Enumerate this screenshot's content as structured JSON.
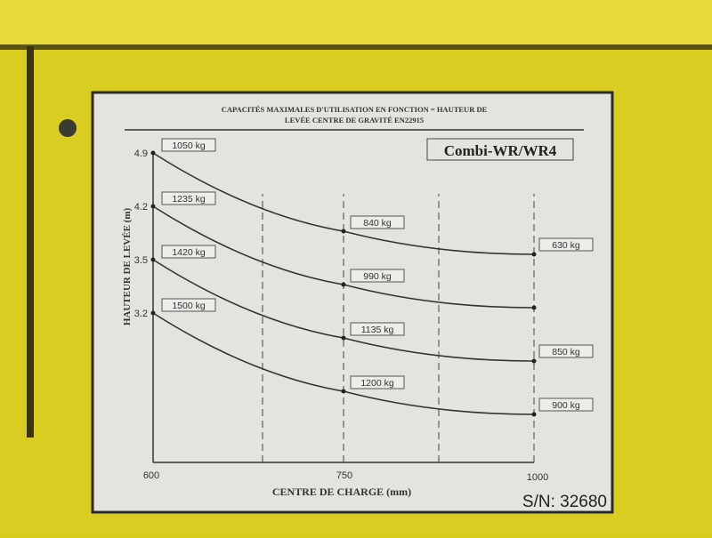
{
  "plate": {
    "header_line1": "CAPACITÉS MAXIMALES D'UTILISATION EN FONCTION = HAUTEUR DE",
    "header_line2": "LEVÉE CENTRE DE GRAVITÉ EN22915",
    "model": "Combi-WR/WR4",
    "serial": "S/N: 32680",
    "colors": {
      "plate": "#e4e4df",
      "frame": "#e2d62a",
      "ink": "#2a2a2a"
    }
  },
  "chart_data": {
    "type": "line",
    "title": "CAPACITÉS MAXIMALES D'UTILISATION EN FONCTION = HAUTEUR DE LEVÉE CENTRE DE GRAVITÉ EN22915",
    "xlabel": "CENTRE DE CHARGE (mm)",
    "ylabel": "HAUTEUR DE LEVÉE (m)",
    "x_ticks": [
      "600",
      "750",
      "1000"
    ],
    "xlim": [
      600,
      1000
    ],
    "grid": "dashed vertical",
    "series": [
      {
        "name": "4.9",
        "x": [
          600,
          800,
          1000
        ],
        "labels": [
          "1050 kg",
          "840 kg",
          "630 kg"
        ]
      },
      {
        "name": "4.2",
        "x": [
          600,
          800,
          1000
        ],
        "labels": [
          "1235 kg",
          "990 kg",
          ""
        ]
      },
      {
        "name": "3.5",
        "x": [
          600,
          800,
          1000
        ],
        "labels": [
          "1420 kg",
          "1135 kg",
          "850 kg"
        ]
      },
      {
        "name": "3.2",
        "x": [
          600,
          800,
          1000
        ],
        "labels": [
          "1500 kg",
          "1200 kg",
          "900 kg"
        ]
      }
    ]
  }
}
